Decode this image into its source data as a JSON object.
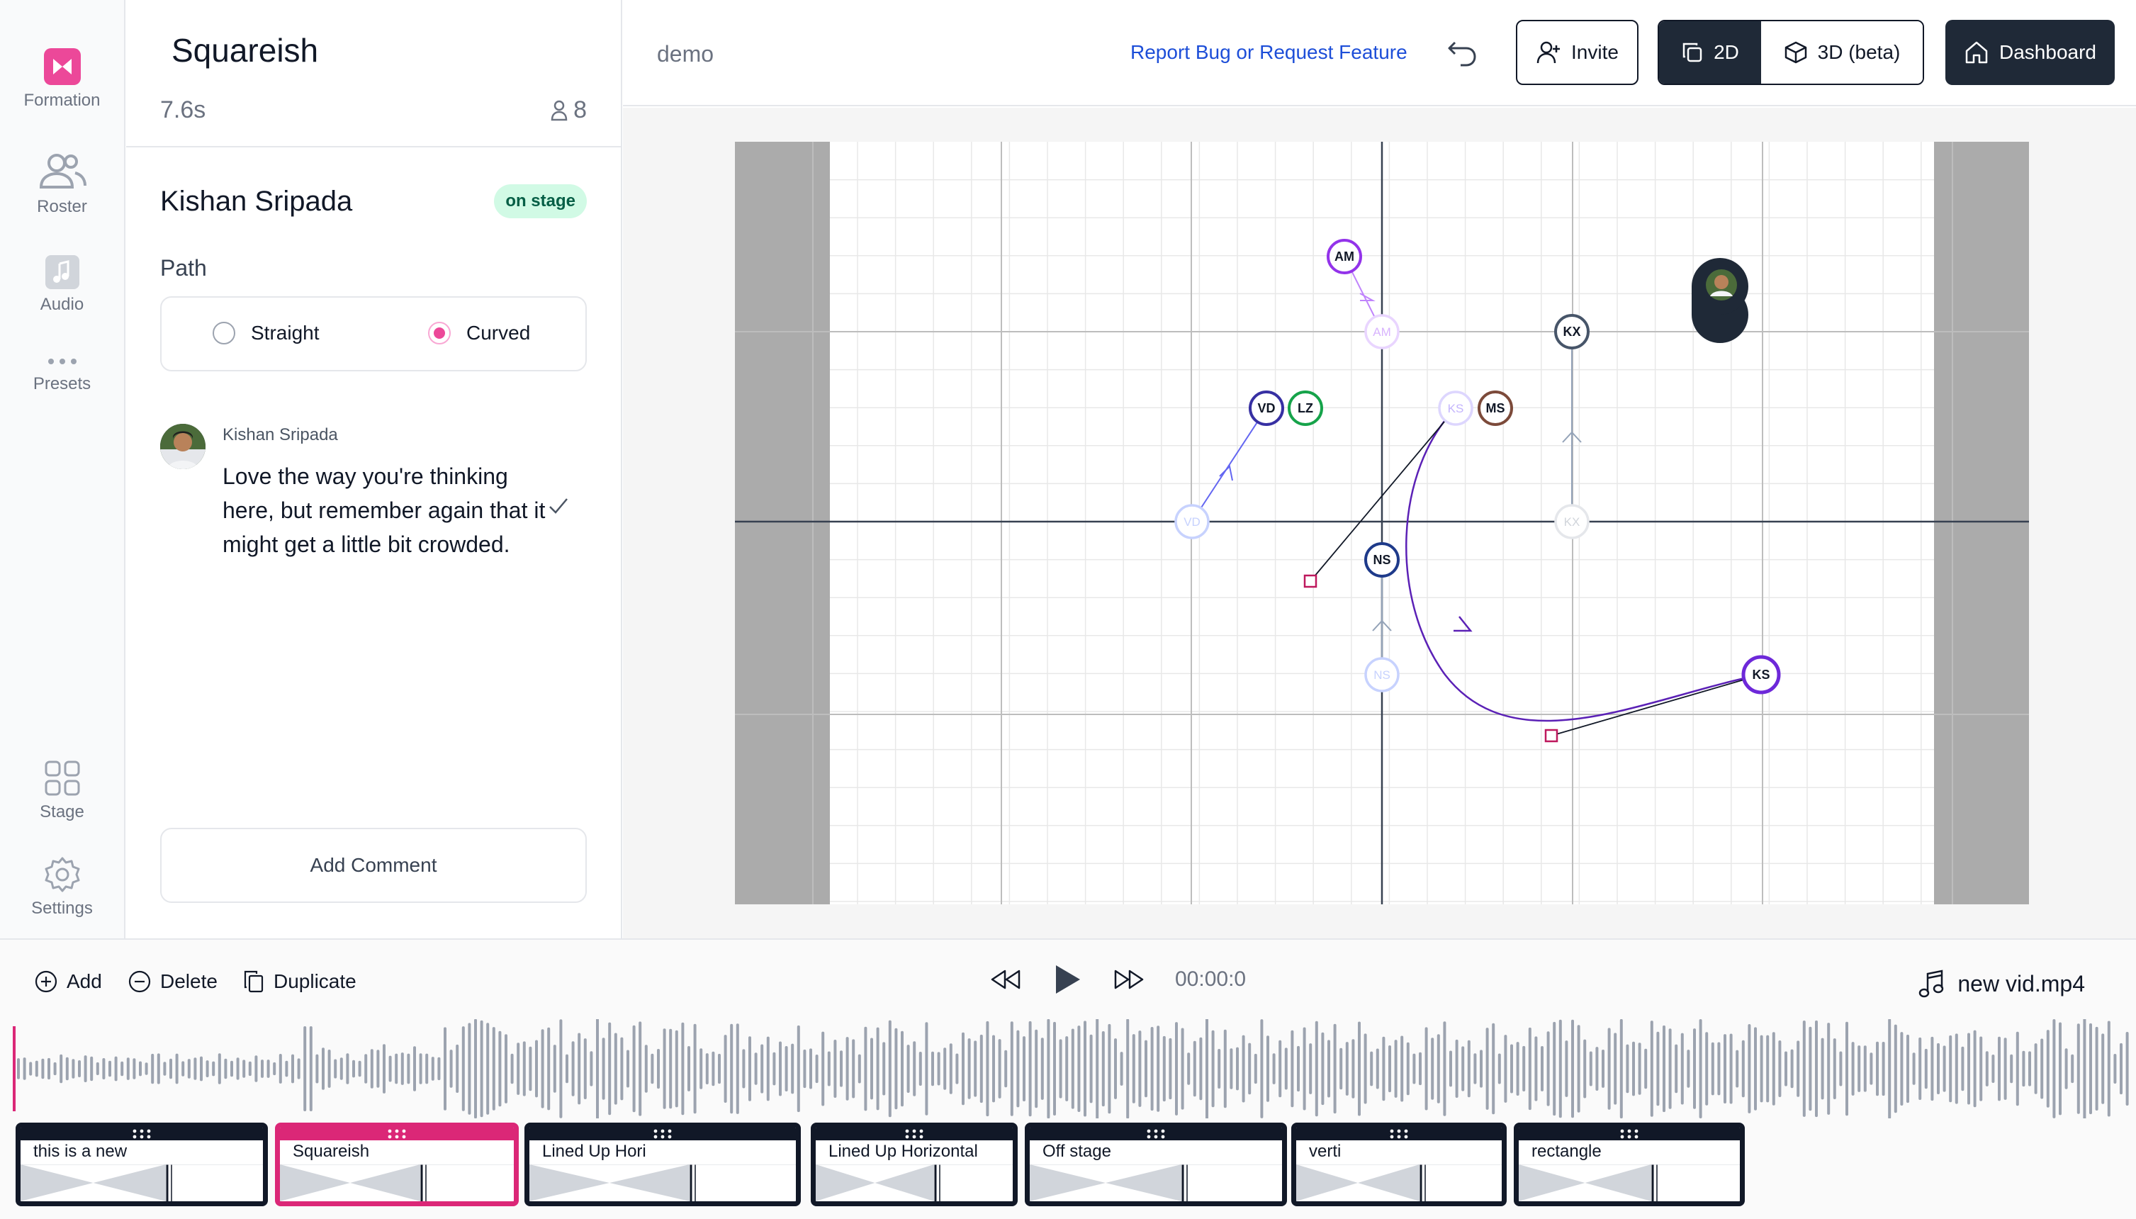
{
  "nav": {
    "items": [
      {
        "label": "Formation",
        "icon": "bowtie-logo-icon"
      },
      {
        "label": "Roster",
        "icon": "users-icon"
      },
      {
        "label": "Audio",
        "icon": "music-note-icon"
      },
      {
        "label": "Presets",
        "icon": "ellipsis-icon"
      },
      {
        "label": "Stage",
        "icon": "grid-icon"
      },
      {
        "label": "Settings",
        "icon": "gear-icon"
      }
    ],
    "accent": "#ec4899"
  },
  "formation": {
    "title": "Squareish",
    "duration": "7.6s",
    "dancer_count": "8"
  },
  "dancer": {
    "name": "Kishan Sripada",
    "status": "on stage",
    "path_label": "Path",
    "path_options": [
      "Straight",
      "Curved"
    ],
    "path_selected": "Curved"
  },
  "comment": {
    "author": "Kishan Sripada",
    "text": "Love the way you're thinking here, but remember again that it might get a little bit crowded.",
    "button": "Add Comment"
  },
  "header": {
    "project": "demo",
    "report_link": "Report Bug or Request Feature",
    "invite": "Invite",
    "view_2d": "2D",
    "view_3d": "3D (beta)",
    "dashboard": "Dashboard"
  },
  "stage": {
    "dancers_current": [
      "AM",
      "VD",
      "LZ",
      "MS",
      "KX",
      "NS",
      "KS"
    ],
    "dancers_previous": [
      "AM",
      "VD",
      "KS",
      "KX",
      "NS"
    ],
    "colors": {
      "AM": "#9333ea",
      "VD": "#3730a3",
      "LZ": "#16a34a",
      "MS": "#7c4a3a",
      "KX": "#475569",
      "NS": "#1e3a8a",
      "KS": "#6d28d9"
    }
  },
  "toolbar": {
    "add": "Add",
    "delete": "Delete",
    "duplicate": "Duplicate",
    "time": "00:00:0",
    "audio_file": "new vid.mp4"
  },
  "timeline": {
    "formations": [
      {
        "name": "this is a new",
        "active": false
      },
      {
        "name": "Squareish",
        "active": true
      },
      {
        "name": "Lined Up Hori",
        "active": false
      },
      {
        "name": "Lined Up Horizontal",
        "active": false
      },
      {
        "name": "Off stage",
        "active": false
      },
      {
        "name": "verti",
        "active": false
      },
      {
        "name": "rectangle",
        "active": false
      }
    ]
  }
}
